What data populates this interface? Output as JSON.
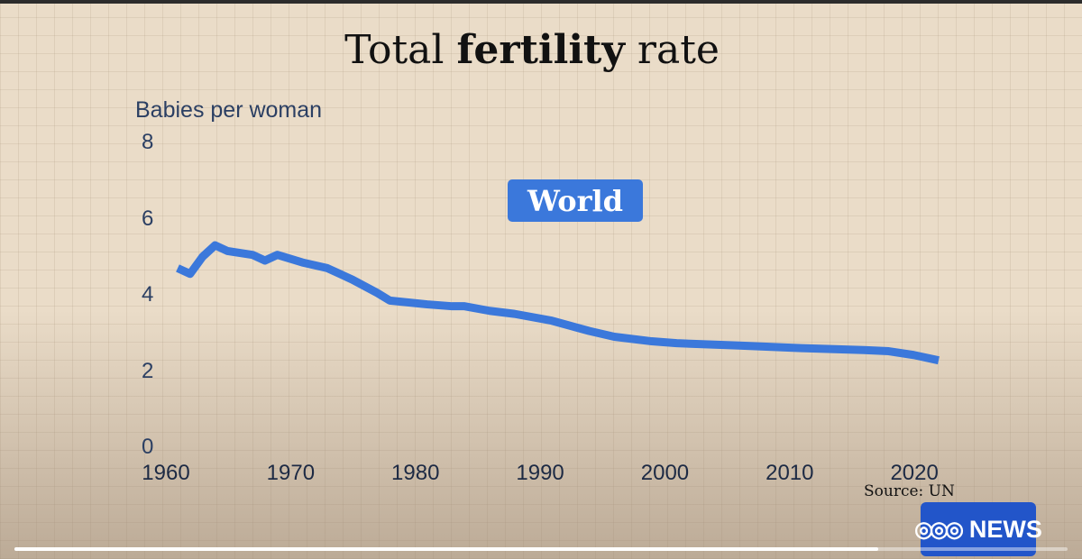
{
  "chart_data": {
    "type": "line",
    "title_prefix": "Total ",
    "title_bold": "fertility",
    "title_suffix": " rate",
    "ylabel": "Babies per woman",
    "xlabel": "",
    "xlim": [
      1960,
      2021
    ],
    "ylim": [
      0,
      8
    ],
    "x_ticks": [
      "1960",
      "1970",
      "1980",
      "1990",
      "2000",
      "2010",
      "2020"
    ],
    "y_ticks": [
      "0",
      "2",
      "4",
      "6",
      "8"
    ],
    "grid": true,
    "series": [
      {
        "name": "World",
        "color": "#3b78db",
        "x": [
          1960,
          1961,
          1962,
          1963,
          1964,
          1965,
          1966,
          1967,
          1968,
          1970,
          1972,
          1974,
          1976,
          1977,
          1980,
          1982,
          1983,
          1985,
          1987,
          1990,
          1993,
          1995,
          1998,
          2000,
          2005,
          2010,
          2015,
          2017,
          2019,
          2021
        ],
        "y": [
          4.7,
          4.55,
          5.0,
          5.3,
          5.15,
          5.1,
          5.05,
          4.9,
          5.05,
          4.85,
          4.7,
          4.4,
          4.05,
          3.85,
          3.75,
          3.7,
          3.7,
          3.58,
          3.5,
          3.32,
          3.05,
          2.9,
          2.78,
          2.73,
          2.67,
          2.6,
          2.55,
          2.52,
          2.42,
          2.28
        ]
      }
    ]
  },
  "source_text": "Source: UN",
  "logo": {
    "mark": "ABC",
    "text": "NEWS"
  },
  "video_progress": 0.82
}
